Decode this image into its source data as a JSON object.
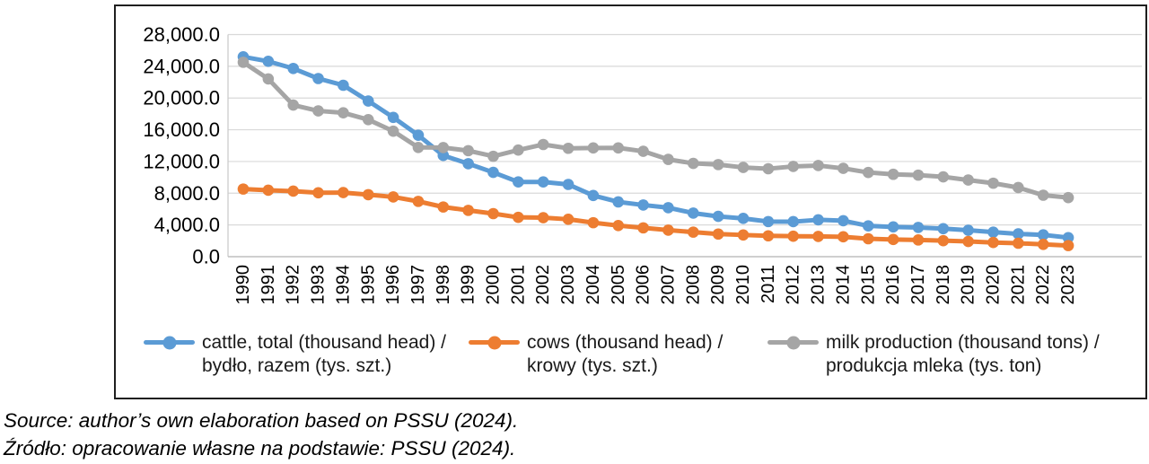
{
  "chart_data": {
    "type": "line",
    "title": "",
    "xlabel": "",
    "ylabel": "",
    "ylim": [
      0,
      28000
    ],
    "grid": true,
    "legend_position": "bottom",
    "y_ticks": [
      {
        "value": 0,
        "label": "0.0"
      },
      {
        "value": 4000,
        "label": "4,000.0"
      },
      {
        "value": 8000,
        "label": "8,000.0"
      },
      {
        "value": 12000,
        "label": "12,000.0"
      },
      {
        "value": 16000,
        "label": "16,000.0"
      },
      {
        "value": 20000,
        "label": "20,000.0"
      },
      {
        "value": 24000,
        "label": "24,000.0"
      },
      {
        "value": 28000,
        "label": "28,000.0"
      }
    ],
    "categories": [
      "1990",
      "1991",
      "1992",
      "1993",
      "1994",
      "1995",
      "1996",
      "1997",
      "1998",
      "1999",
      "2000",
      "2001",
      "2002",
      "2003",
      "2004",
      "2005",
      "2006",
      "2007",
      "2008",
      "2009",
      "2010",
      "2011",
      "2012",
      "2013",
      "2014",
      "2015",
      "2016",
      "2017",
      "2018",
      "2019",
      "2020",
      "2021",
      "2022",
      "2023"
    ],
    "series": [
      {
        "id": "cattle",
        "name": "cattle, total (thousand head) / bydło, razem (tys. szt.)",
        "legend_line1": "cattle, total (thousand head) /",
        "legend_line2": "bydło, razem (tys. szt.)",
        "color": "#5B9BD5",
        "values": [
          25194.8,
          24623.4,
          23727.6,
          22456.8,
          21607.3,
          19624.3,
          17557.3,
          15313.2,
          12758.5,
          11721.6,
          10626.5,
          9423.7,
          9421.1,
          9108.4,
          7712.1,
          6902.9,
          6514.1,
          6175.4,
          5490.9,
          5079.0,
          4826.7,
          4425.8,
          4415.6,
          4645.9,
          4534.0,
          3884.0,
          3750.3,
          3682.3,
          3530.8,
          3332.9,
          3092.0,
          2874.0,
          2750.0,
          2400.0
        ]
      },
      {
        "id": "cows",
        "name": "cows (thousand head) / krowy (tys. szt.)",
        "legend_line1": "cows (thousand head) /",
        "legend_line2": "krowy (tys. szt.)",
        "color": "#ED7D31",
        "values": [
          8527.6,
          8378.2,
          8262.6,
          8057.2,
          8077.7,
          7818.3,
          7531.3,
          6971.9,
          6264.8,
          5840.8,
          5431.0,
          4958.3,
          4918.1,
          4715.6,
          4283.5,
          3926.0,
          3635.1,
          3346.7,
          3095.9,
          2856.3,
          2736.5,
          2631.2,
          2582.2,
          2554.3,
          2508.8,
          2262.7,
          2166.6,
          2108.9,
          2017.8,
          1919.4,
          1788.5,
          1697.3,
          1550.0,
          1400.0
        ]
      },
      {
        "id": "milk",
        "name": "milk production (thousand tons) / produkcja mleka (tys. ton)",
        "legend_line1": "milk production (thousand tons) /",
        "legend_line2": "produkcja mleka (tys. ton)",
        "color": "#A5A5A5",
        "values": [
          24508.3,
          22408.6,
          19113.7,
          18376.0,
          18137.5,
          17274.3,
          15821.2,
          13767.6,
          13752.7,
          13362.3,
          12657.9,
          13444.2,
          14142.4,
          13661.4,
          13709.5,
          13714.4,
          13286.9,
          12262.1,
          11761.3,
          11609.6,
          11248.5,
          11086.0,
          11377.6,
          11488.2,
          11132.8,
          10615.4,
          10381.5,
          10280.5,
          10064.0,
          9663.2,
          9263.6,
          8713.9,
          7750.0,
          7450.0
        ]
      }
    ],
    "colors": {
      "gridline": "#D9D9D9",
      "axis": "#BFBFBF",
      "border": "#1f1f1f"
    }
  },
  "source": {
    "line1": "Source: author’s own elaboration based on PSSU (2024).",
    "line2": "Źródło: opracowanie własne na podstawie: PSSU (2024)."
  }
}
